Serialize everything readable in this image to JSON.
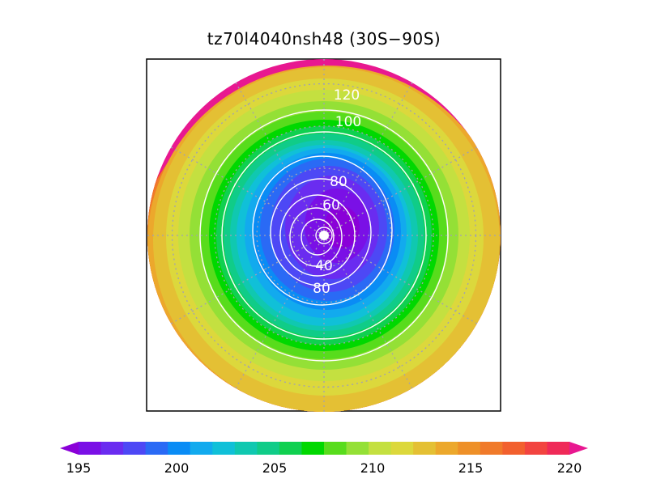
{
  "title": "tz70l4040nsh48 (30S−90S)",
  "map": {
    "projection": "south polar stereographic",
    "lat_range": [
      "30S",
      "90S"
    ],
    "fill_colors": [
      "#8a00d8",
      "#7a10e6",
      "#6a2cf0",
      "#4d48f5",
      "#2a6af5",
      "#0a8cf5",
      "#12aaee",
      "#10c0d8",
      "#10c8b0",
      "#10cc88",
      "#10d050",
      "#00d800",
      "#58dc1c",
      "#94e036",
      "#c4e040",
      "#dcd83c",
      "#e4c034",
      "#eca82c",
      "#ee9028",
      "#f07a2a",
      "#f2602e",
      "#f24440",
      "#ef2a58",
      "#e81890"
    ],
    "contour_labels": [
      "120",
      "100",
      "80",
      "60",
      "40",
      "80"
    ]
  },
  "colorbar": {
    "tick_labels": [
      "195",
      "200",
      "205",
      "210",
      "215",
      "220"
    ],
    "colors": [
      "#8a00d8",
      "#7a10e6",
      "#6a2cf0",
      "#4d48f5",
      "#2a6af5",
      "#0a8cf5",
      "#12aaee",
      "#10c0d8",
      "#10c8b0",
      "#10cc88",
      "#10d050",
      "#00d800",
      "#58dc1c",
      "#94e036",
      "#c4e040",
      "#dcd83c",
      "#e4c034",
      "#eca82c",
      "#ee9028",
      "#f07a2a",
      "#f2602e",
      "#f24440",
      "#ef2a58",
      "#e81890"
    ]
  }
}
